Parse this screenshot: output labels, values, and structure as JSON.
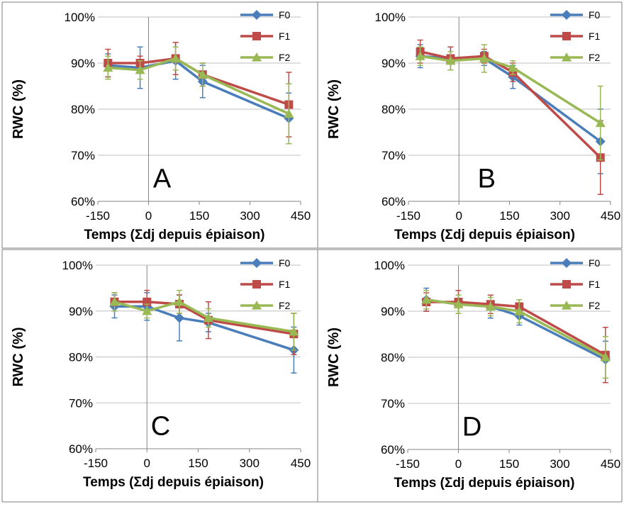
{
  "colors": {
    "F0": "#4a7ebb",
    "F1": "#be4b48",
    "F2": "#98b954",
    "grid": "#bfbfbf",
    "frame": "#7f7f7f"
  },
  "chart_data": [
    {
      "type": "line",
      "panel": "A",
      "ylabel": "RWC (%)",
      "xlabel": "Temps (Σdj depuis épiaison)",
      "xlim": [
        -150,
        450
      ],
      "xticks": [
        "-150",
        "0",
        "150",
        "300",
        "450"
      ],
      "ylim": [
        60,
        100
      ],
      "yticks": [
        "60%",
        "70%",
        "80%",
        "90%",
        "100%"
      ],
      "legend": "top-right",
      "series": [
        {
          "name": "F0",
          "marker": "diamond",
          "x": [
            -120,
            -25,
            80,
            160,
            415
          ],
          "y": [
            89.5,
            89.0,
            90.5,
            86.0,
            78.0
          ],
          "err": [
            2.5,
            4.5,
            4.0,
            3.5,
            5.5
          ]
        },
        {
          "name": "F1",
          "marker": "square",
          "x": [
            -120,
            -25,
            80,
            160,
            415
          ],
          "y": [
            90.0,
            90.0,
            91.0,
            87.5,
            81.0
          ],
          "err": [
            3.0,
            1.5,
            3.5,
            2.5,
            7.0
          ]
        },
        {
          "name": "F2",
          "marker": "triangle",
          "x": [
            -120,
            -25,
            80,
            160,
            415
          ],
          "y": [
            89.0,
            88.5,
            91.0,
            87.5,
            79.0
          ],
          "err": [
            2.5,
            2.0,
            2.5,
            2.5,
            6.5
          ]
        }
      ]
    },
    {
      "type": "line",
      "panel": "B",
      "ylabel": "RWC (%)",
      "xlabel": "Temps (Σdj depuis épiaison)",
      "xlim": [
        -150,
        450
      ],
      "xticks": [
        "-150",
        "0",
        "150",
        "300",
        "450"
      ],
      "ylim": [
        60,
        100
      ],
      "yticks": [
        "60%",
        "70%",
        "80%",
        "90%",
        "100%"
      ],
      "legend": "top-right",
      "series": [
        {
          "name": "F0",
          "marker": "diamond",
          "x": [
            -115,
            -25,
            75,
            160,
            420
          ],
          "y": [
            91.5,
            91.0,
            91.0,
            87.0,
            73.0
          ],
          "err": [
            2.5,
            2.5,
            1.5,
            2.5,
            7.0
          ]
        },
        {
          "name": "F1",
          "marker": "square",
          "x": [
            -115,
            -25,
            75,
            160,
            420
          ],
          "y": [
            92.5,
            91.0,
            91.5,
            88.0,
            69.5
          ],
          "err": [
            2.5,
            2.5,
            1.5,
            2.0,
            8.0
          ]
        },
        {
          "name": "F2",
          "marker": "triangle",
          "x": [
            -115,
            -25,
            75,
            160,
            420
          ],
          "y": [
            91.5,
            90.5,
            91.0,
            89.0,
            77.0
          ],
          "err": [
            2.0,
            2.0,
            3.0,
            1.5,
            8.0
          ]
        }
      ]
    },
    {
      "type": "line",
      "panel": "C",
      "ylabel": "RWC (%)",
      "xlabel": "Temps (Σdj depuis épiaison)",
      "xlim": [
        -150,
        450
      ],
      "xticks": [
        "-150",
        "0",
        "150",
        "300",
        "450"
      ],
      "ylim": [
        60,
        100
      ],
      "yticks": [
        "60%",
        "70%",
        "80%",
        "90%",
        "100%"
      ],
      "legend": "top-right",
      "series": [
        {
          "name": "F0",
          "marker": "diamond",
          "x": [
            -95,
            0,
            95,
            180,
            430
          ],
          "y": [
            91.0,
            91.0,
            88.5,
            87.5,
            81.5
          ],
          "err": [
            2.5,
            3.0,
            5.0,
            2.0,
            5.0
          ]
        },
        {
          "name": "F1",
          "marker": "square",
          "x": [
            -95,
            0,
            95,
            180,
            430
          ],
          "y": [
            92.0,
            92.0,
            91.5,
            88.0,
            85.0
          ],
          "err": [
            2.0,
            2.5,
            2.0,
            4.0,
            4.5
          ]
        },
        {
          "name": "F2",
          "marker": "triangle",
          "x": [
            -95,
            0,
            95,
            180,
            430
          ],
          "y": [
            92.0,
            90.0,
            92.0,
            88.5,
            85.5
          ],
          "err": [
            2.0,
            1.5,
            2.5,
            2.0,
            4.0
          ]
        }
      ]
    },
    {
      "type": "line",
      "panel": "D",
      "ylabel": "RWC (%)",
      "xlabel": "Temps (Σdj depuis épiaison)",
      "xlim": [
        -150,
        450
      ],
      "xticks": [
        "-150",
        "0",
        "150",
        "300",
        "450"
      ],
      "ylim": [
        60,
        100
      ],
      "yticks": [
        "60%",
        "70%",
        "80%",
        "90%",
        "100%"
      ],
      "legend": "top-right",
      "series": [
        {
          "name": "F0",
          "marker": "diamond",
          "x": [
            -95,
            0,
            95,
            180,
            435
          ],
          "y": [
            92.5,
            91.5,
            91.0,
            89.0,
            79.5
          ],
          "err": [
            2.5,
            2.0,
            2.5,
            2.0,
            4.0
          ]
        },
        {
          "name": "F1",
          "marker": "square",
          "x": [
            -95,
            0,
            95,
            180,
            435
          ],
          "y": [
            92.0,
            92.0,
            91.5,
            91.0,
            80.5
          ],
          "err": [
            2.0,
            2.5,
            2.0,
            1.5,
            6.0
          ]
        },
        {
          "name": "F2",
          "marker": "triangle",
          "x": [
            -95,
            0,
            95,
            180,
            435
          ],
          "y": [
            92.5,
            91.5,
            91.0,
            90.0,
            80.0
          ],
          "err": [
            2.0,
            2.0,
            2.0,
            2.5,
            4.5
          ]
        }
      ]
    }
  ]
}
